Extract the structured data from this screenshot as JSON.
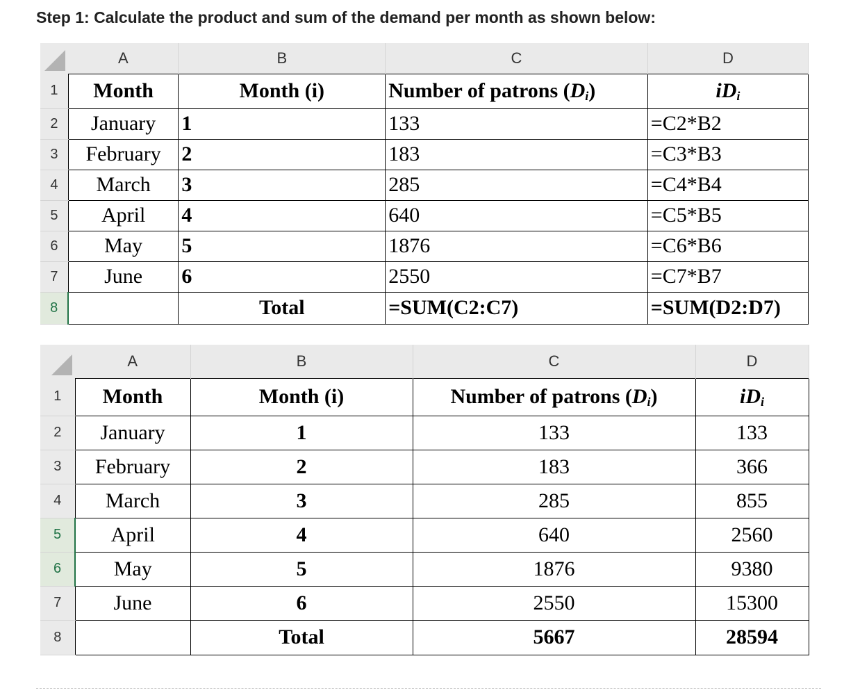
{
  "heading": "Step 1: Calculate the product and sum of the demand per month as shown below:",
  "columns": [
    "A",
    "B",
    "C",
    "D"
  ],
  "table1": {
    "header": {
      "month": "Month",
      "month_i": "Month (i)",
      "patrons_pre": "Number of patrons (",
      "patrons_d": "D",
      "patrons_sub": "i",
      "patrons_post": ")",
      "id_i": "i",
      "id_d": "D",
      "id_sub": "i"
    },
    "rows": [
      {
        "num": "2",
        "month": "January",
        "i": "1",
        "patrons": "133",
        "id": "=C2*B2"
      },
      {
        "num": "3",
        "month": "February",
        "i": "2",
        "patrons": "183",
        "id": "=C3*B3"
      },
      {
        "num": "4",
        "month": "March",
        "i": "3",
        "patrons": "285",
        "id": "=C4*B4"
      },
      {
        "num": "5",
        "month": "April",
        "i": "4",
        "patrons": "640",
        "id": "=C5*B5"
      },
      {
        "num": "6",
        "month": "May",
        "i": "5",
        "patrons": "1876",
        "id": "=C6*B6"
      },
      {
        "num": "7",
        "month": "June",
        "i": "6",
        "patrons": "2550",
        "id": "=C7*B7"
      }
    ],
    "total": {
      "num": "8",
      "label": "Total",
      "patrons": "=SUM(C2:C7)",
      "id": "=SUM(D2:D7)"
    }
  },
  "table2": {
    "header": {
      "month": "Month",
      "month_i": "Month (i)",
      "patrons_pre": "Number of patrons (",
      "patrons_d": "D",
      "patrons_sub": "i",
      "patrons_post": ")",
      "id_i": "i",
      "id_d": "D",
      "id_sub": "i"
    },
    "rows": [
      {
        "num": "2",
        "month": "January",
        "i": "1",
        "patrons": "133",
        "id": "133"
      },
      {
        "num": "3",
        "month": "February",
        "i": "2",
        "patrons": "183",
        "id": "366"
      },
      {
        "num": "4",
        "month": "March",
        "i": "3",
        "patrons": "285",
        "id": "855"
      },
      {
        "num": "5",
        "month": "April",
        "i": "4",
        "patrons": "640",
        "id": "2560"
      },
      {
        "num": "6",
        "month": "May",
        "i": "5",
        "patrons": "1876",
        "id": "9380"
      },
      {
        "num": "7",
        "month": "June",
        "i": "6",
        "patrons": "2550",
        "id": "15300"
      }
    ],
    "total": {
      "num": "8",
      "label": "Total",
      "patrons": "5667",
      "id": "28594"
    }
  },
  "colors": {
    "header_bg": "#eaeaea",
    "selection_green": "#217346"
  }
}
